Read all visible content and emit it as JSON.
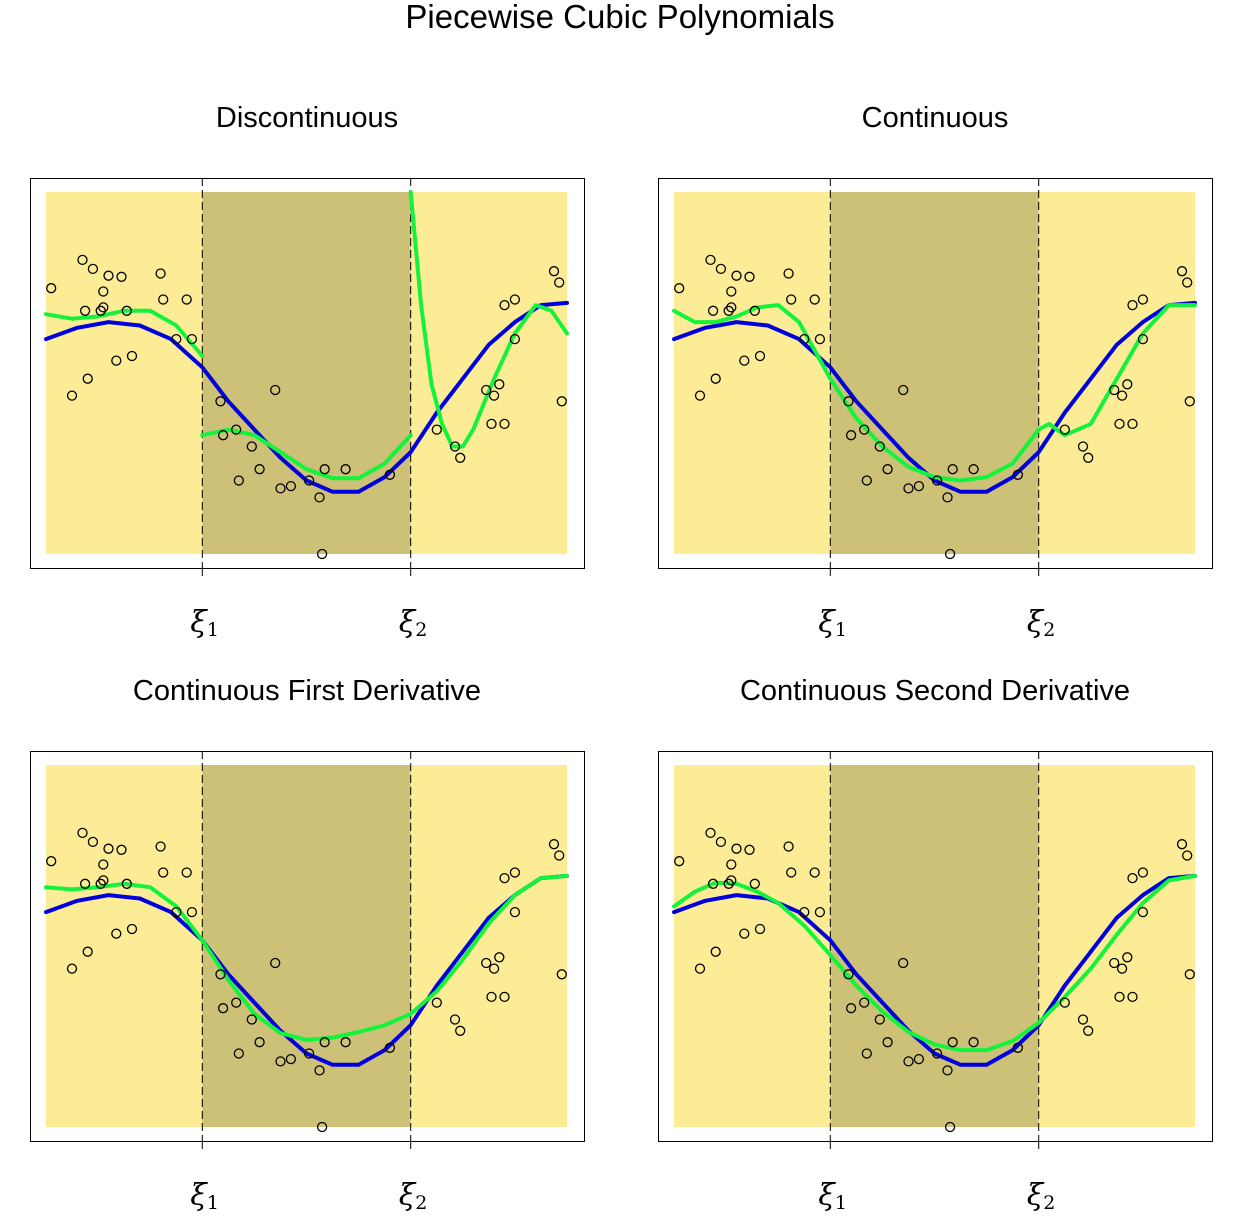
{
  "title": "Piecewise Cubic Polynomials",
  "colors": {
    "region_outer": "#fcec96",
    "region_middle": "#cdc077",
    "true_curve": "#0000dd",
    "fit_curve": "#14f33c",
    "points": "#000000"
  },
  "chart_data": [
    {
      "type": "scatter",
      "title": "Discontinuous",
      "xlim": [
        0,
        1
      ],
      "ylim": [
        -1.6,
        1.6
      ],
      "grid": false,
      "legend": "none",
      "knots": [
        0.3,
        0.7
      ],
      "tick_labels": [
        {
          "sym": "ξ",
          "sub": "1"
        },
        {
          "sym": "ξ",
          "sub": "2"
        }
      ],
      "points": {
        "x": [],
        "y": []
      },
      "series": [
        {
          "x": [
            0,
            0.06,
            0.12,
            0.18,
            0.24,
            0.3,
            0.35,
            0.4,
            0.45,
            0.5,
            0.55,
            0.6,
            0.65,
            0.7,
            0.75,
            0.8,
            0.85,
            0.9,
            0.95,
            1
          ],
          "y": [
            0.3,
            0.4,
            0.45,
            0.42,
            0.3,
            0.05,
            -0.25,
            -0.5,
            -0.75,
            -0.95,
            -1.05,
            -1.05,
            -0.92,
            -0.7,
            -0.35,
            -0.05,
            0.25,
            0.45,
            0.6,
            0.62
          ]
        },
        {
          "segments": [
            {
              "x": [
                0,
                0.05,
                0.1,
                0.15,
                0.2,
                0.25,
                0.3
              ],
              "y": [
                0.52,
                0.48,
                0.5,
                0.55,
                0.55,
                0.42,
                0.15
              ]
            },
            {
              "x": [
                0.3,
                0.35,
                0.4,
                0.45,
                0.5,
                0.55,
                0.6,
                0.65,
                0.7
              ],
              "y": [
                -0.55,
                -0.5,
                -0.55,
                -0.7,
                -0.85,
                -0.93,
                -0.93,
                -0.8,
                -0.55
              ]
            },
            {
              "x": [
                0.7,
                0.72,
                0.74,
                0.76,
                0.78,
                0.8,
                0.82,
                0.86,
                0.9,
                0.94,
                0.97,
                1
              ],
              "y": [
                1.6,
                0.6,
                -0.1,
                -0.45,
                -0.65,
                -0.65,
                -0.5,
                -0.05,
                0.35,
                0.6,
                0.55,
                0.35
              ]
            }
          ]
        }
      ]
    },
    {
      "type": "scatter",
      "title": "Continuous",
      "xlim": [
        0,
        1
      ],
      "ylim": [
        -1.6,
        1.6
      ],
      "grid": false,
      "legend": "none",
      "knots": [
        0.3,
        0.7
      ],
      "tick_labels": [
        {
          "sym": "ξ",
          "sub": "1"
        },
        {
          "sym": "ξ",
          "sub": "2"
        }
      ],
      "points": {
        "x": [],
        "y": []
      },
      "series": [
        {
          "x": [
            0,
            0.06,
            0.12,
            0.18,
            0.24,
            0.3,
            0.35,
            0.4,
            0.45,
            0.5,
            0.55,
            0.6,
            0.65,
            0.7,
            0.75,
            0.8,
            0.85,
            0.9,
            0.95,
            1
          ],
          "y": [
            0.3,
            0.4,
            0.45,
            0.42,
            0.3,
            0.05,
            -0.25,
            -0.5,
            -0.75,
            -0.95,
            -1.05,
            -1.05,
            -0.92,
            -0.7,
            -0.35,
            -0.05,
            0.25,
            0.45,
            0.6,
            0.62
          ]
        },
        {
          "x": [
            0,
            0.04,
            0.08,
            0.12,
            0.16,
            0.2,
            0.24,
            0.27,
            0.3,
            0.35,
            0.4,
            0.45,
            0.5,
            0.55,
            0.6,
            0.65,
            0.7,
            0.72,
            0.75,
            0.8,
            0.85,
            0.9,
            0.95,
            1
          ],
          "y": [
            0.55,
            0.45,
            0.45,
            0.5,
            0.58,
            0.6,
            0.45,
            0.2,
            -0.05,
            -0.4,
            -0.65,
            -0.83,
            -0.92,
            -0.95,
            -0.92,
            -0.8,
            -0.5,
            -0.45,
            -0.55,
            -0.45,
            -0.05,
            0.35,
            0.6,
            0.6
          ]
        }
      ]
    },
    {
      "type": "scatter",
      "title": "Continuous First Derivative",
      "xlim": [
        0,
        1
      ],
      "ylim": [
        -1.6,
        1.6
      ],
      "grid": false,
      "legend": "none",
      "knots": [
        0.3,
        0.7
      ],
      "tick_labels": [
        {
          "sym": "ξ",
          "sub": "1"
        },
        {
          "sym": "ξ",
          "sub": "2"
        }
      ],
      "points": {
        "x": [],
        "y": []
      },
      "series": [
        {
          "x": [
            0,
            0.06,
            0.12,
            0.18,
            0.24,
            0.3,
            0.35,
            0.4,
            0.45,
            0.5,
            0.55,
            0.6,
            0.65,
            0.7,
            0.75,
            0.8,
            0.85,
            0.9,
            0.95,
            1
          ],
          "y": [
            0.3,
            0.4,
            0.45,
            0.42,
            0.3,
            0.05,
            -0.25,
            -0.5,
            -0.75,
            -0.95,
            -1.05,
            -1.05,
            -0.92,
            -0.7,
            -0.35,
            -0.05,
            0.25,
            0.45,
            0.6,
            0.62
          ]
        },
        {
          "x": [
            0,
            0.05,
            0.1,
            0.15,
            0.2,
            0.25,
            0.3,
            0.35,
            0.4,
            0.45,
            0.5,
            0.55,
            0.6,
            0.65,
            0.7,
            0.75,
            0.8,
            0.85,
            0.9,
            0.95,
            1
          ],
          "y": [
            0.52,
            0.5,
            0.52,
            0.55,
            0.52,
            0.35,
            0.05,
            -0.3,
            -0.6,
            -0.77,
            -0.83,
            -0.81,
            -0.76,
            -0.7,
            -0.6,
            -0.4,
            -0.12,
            0.2,
            0.45,
            0.6,
            0.62
          ]
        }
      ]
    },
    {
      "type": "scatter",
      "title": "Continuous Second Derivative",
      "xlim": [
        0,
        1
      ],
      "ylim": [
        -1.6,
        1.6
      ],
      "grid": false,
      "legend": "none",
      "knots": [
        0.3,
        0.7
      ],
      "tick_labels": [
        {
          "sym": "ξ",
          "sub": "1"
        },
        {
          "sym": "ξ",
          "sub": "2"
        }
      ],
      "points": {
        "x": [],
        "y": []
      },
      "series": [
        {
          "x": [
            0,
            0.06,
            0.12,
            0.18,
            0.24,
            0.3,
            0.35,
            0.4,
            0.45,
            0.5,
            0.55,
            0.6,
            0.65,
            0.7,
            0.75,
            0.8,
            0.85,
            0.9,
            0.95,
            1
          ],
          "y": [
            0.3,
            0.4,
            0.45,
            0.42,
            0.3,
            0.05,
            -0.25,
            -0.5,
            -0.75,
            -0.95,
            -1.05,
            -1.05,
            -0.92,
            -0.7,
            -0.35,
            -0.05,
            0.25,
            0.45,
            0.6,
            0.62
          ]
        },
        {
          "x": [
            0,
            0.04,
            0.08,
            0.12,
            0.16,
            0.2,
            0.25,
            0.3,
            0.35,
            0.4,
            0.45,
            0.5,
            0.55,
            0.6,
            0.65,
            0.7,
            0.75,
            0.8,
            0.85,
            0.9,
            0.95,
            1
          ],
          "y": [
            0.35,
            0.48,
            0.56,
            0.55,
            0.48,
            0.38,
            0.18,
            -0.08,
            -0.35,
            -0.58,
            -0.76,
            -0.87,
            -0.92,
            -0.92,
            -0.84,
            -0.68,
            -0.45,
            -0.2,
            0.1,
            0.38,
            0.58,
            0.62
          ]
        }
      ]
    }
  ],
  "shared_points": {
    "x": [
      0.01,
      0.05,
      0.07,
      0.075,
      0.08,
      0.09,
      0.105,
      0.11,
      0.11,
      0.12,
      0.135,
      0.145,
      0.155,
      0.165,
      0.22,
      0.225,
      0.25,
      0.27,
      0.28,
      0.335,
      0.34,
      0.365,
      0.37,
      0.395,
      0.41,
      0.44,
      0.45,
      0.47,
      0.505,
      0.525,
      0.53,
      0.535,
      0.575,
      0.66,
      0.75,
      0.785,
      0.795,
      0.845,
      0.855,
      0.86,
      0.87,
      0.88,
      0.88,
      0.9,
      0.9,
      0.975,
      0.985,
      0.99
    ],
    "y": [
      0.75,
      -0.2,
      1.0,
      0.55,
      -0.05,
      0.92,
      0.55,
      0.72,
      0.58,
      0.86,
      0.11,
      0.85,
      0.55,
      0.15,
      0.88,
      0.65,
      0.3,
      0.65,
      0.3,
      -0.25,
      -0.55,
      -0.5,
      -0.95,
      -0.65,
      -0.85,
      -0.15,
      -1.02,
      -1.0,
      -0.95,
      -1.1,
      -1.6,
      -0.85,
      -0.85,
      -0.9,
      -0.5,
      -0.65,
      -0.75,
      -0.15,
      -0.45,
      -0.2,
      -0.1,
      -0.45,
      0.6,
      0.3,
      0.65,
      0.9,
      0.8,
      -0.25
    ]
  }
}
